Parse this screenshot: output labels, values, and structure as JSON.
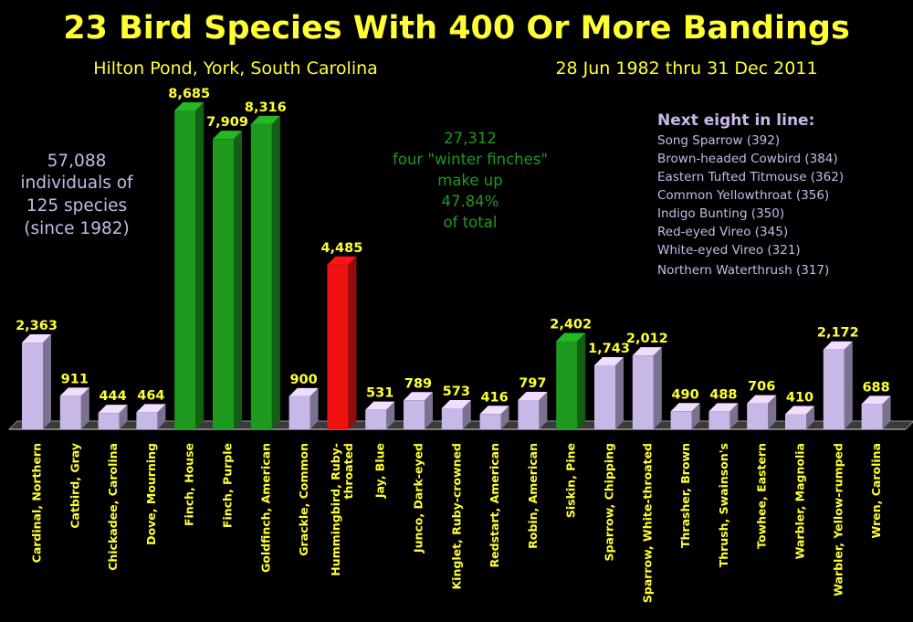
{
  "header": {
    "title": "23 Bird Species With 400 Or More Bandings",
    "location": "Hilton Pond, York, South Carolina",
    "dates": "28 Jun 1982 thru 31 Dec 2011"
  },
  "annotations": {
    "total": [
      "57,088",
      "individuals of",
      "125 species",
      "(since 1982)"
    ],
    "finches": [
      "27,312",
      "four \"winter finches\"",
      "make up",
      "47.84%",
      "of total"
    ]
  },
  "next_eight": {
    "heading": "Next eight in line:",
    "items": [
      "Song Sparrow (392)",
      "Brown-headed Cowbird (384)",
      "Eastern Tufted Titmouse (362)",
      "Common Yellowthroat (356)",
      "Indigo Bunting (350)",
      "Red-eyed Vireo (345)",
      "White-eyed Vireo (321)",
      "Northern Waterthrush (317)"
    ]
  },
  "colors": {
    "background": "#000000",
    "default_bar": "#c8b8e8",
    "winter_finch_bar": "#1e9a1e",
    "hummingbird_bar": "#ee1111",
    "text_yellow": "#ffff33",
    "text_lavender": "#c8b8e8",
    "text_green": "#1e9a1e"
  },
  "chart_data": {
    "type": "bar",
    "ylim": [
      0,
      8685
    ],
    "grid": false,
    "categories": [
      [
        "Cardinal, Northern"
      ],
      [
        "Catbird, Gray"
      ],
      [
        "Chickadee, Carolina"
      ],
      [
        "Dove, Mourning"
      ],
      [
        "Finch, House"
      ],
      [
        "Finch, Purple"
      ],
      [
        "Goldfinch, American"
      ],
      [
        "Grackle, Common"
      ],
      [
        "Hummingbird, Ruby-",
        "throated"
      ],
      [
        "Jay, Blue"
      ],
      [
        "Junco, Dark-eyed"
      ],
      [
        "Kinglet, Ruby-crowned"
      ],
      [
        "Redstart, American"
      ],
      [
        "Robin, American"
      ],
      [
        "Siskin, Pine"
      ],
      [
        "Sparrow, Chipping"
      ],
      [
        "Sparrow, White-throated"
      ],
      [
        "Thrasher, Brown"
      ],
      [
        "Thrush, Swainson's"
      ],
      [
        "Towhee, Eastern"
      ],
      [
        "Warbler, Magnolia"
      ],
      [
        "Warbler, Yellow-rumped"
      ],
      [
        "Wren, Carolina"
      ]
    ],
    "values": [
      2363,
      911,
      444,
      464,
      8685,
      7909,
      8316,
      900,
      4485,
      531,
      789,
      573,
      416,
      797,
      2402,
      1743,
      2012,
      490,
      488,
      706,
      410,
      2172,
      688
    ],
    "value_labels": [
      "2,363",
      "911",
      "444",
      "464",
      "8,685",
      "7,909",
      "8,316",
      "900",
      "4,485",
      "531",
      "789",
      "573",
      "416",
      "797",
      "2,402",
      "1,743",
      "2,012",
      "490",
      "488",
      "706",
      "410",
      "2,172",
      "688"
    ],
    "bar_colors": [
      "default",
      "default",
      "default",
      "default",
      "winter_finch",
      "winter_finch",
      "winter_finch",
      "default",
      "hummingbird",
      "default",
      "default",
      "default",
      "default",
      "default",
      "winter_finch",
      "default",
      "default",
      "default",
      "default",
      "default",
      "default",
      "default",
      "default"
    ]
  }
}
